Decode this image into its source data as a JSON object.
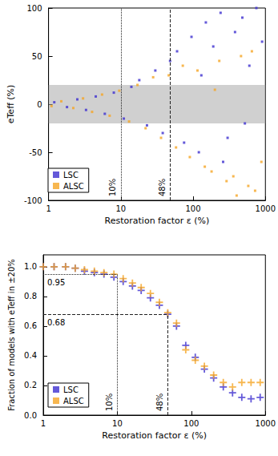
{
  "chart_data": [
    {
      "type": "scatter",
      "x_label": "Restoration factor ε (%)",
      "y_label": "eTeff (%)",
      "log": "x",
      "xlim": [
        1,
        1000
      ],
      "xticks": [
        1,
        10,
        100,
        1000
      ],
      "ylim": [
        -100,
        100
      ],
      "yticks": [
        -100,
        -50,
        0,
        50,
        100
      ],
      "grid": false,
      "legend": "lower left",
      "marker": "square",
      "band": [
        -20,
        20
      ],
      "vlines": [
        {
          "x": 10,
          "label": "10%",
          "line_style": "dotted"
        },
        {
          "x": 48,
          "label": "48%",
          "line_style": "dashed"
        }
      ],
      "series": [
        {
          "name": "LSC",
          "color": "#3d2fd0",
          "x": [
            1.2,
            1.8,
            2.5,
            3.3,
            4.5,
            6,
            8,
            11,
            14,
            18,
            23,
            30,
            38,
            48,
            60,
            75,
            95,
            120,
            150,
            190,
            240,
            300,
            380,
            480,
            600,
            750,
            900,
            130,
            260,
            520
          ],
          "values": [
            2,
            -3,
            5,
            -6,
            8,
            -10,
            12,
            -15,
            18,
            25,
            -22,
            35,
            -30,
            45,
            55,
            -40,
            70,
            -50,
            85,
            60,
            95,
            -35,
            75,
            90,
            40,
            100,
            65,
            30,
            -60,
            -20
          ]
        },
        {
          "name": "ALSC",
          "color": "#f5a524",
          "x": [
            1.1,
            1.5,
            2.2,
            3,
            4,
            5.5,
            7,
            9.5,
            13,
            17,
            22,
            28,
            36,
            46,
            58,
            72,
            90,
            115,
            145,
            180,
            230,
            290,
            360,
            460,
            580,
            720,
            880,
            200,
            400,
            650
          ],
          "values": [
            -2,
            3,
            -4,
            6,
            -8,
            10,
            -12,
            14,
            -18,
            20,
            -25,
            28,
            -35,
            30,
            -45,
            40,
            -55,
            35,
            -65,
            -70,
            45,
            -80,
            -75,
            50,
            -85,
            -90,
            -60,
            15,
            -95,
            55
          ]
        }
      ]
    },
    {
      "type": "scatter",
      "x_label": "Restoration factor ε (%)",
      "y_label": "Fraction of models with eTeff in ±20%",
      "log": "x",
      "xlim": [
        1,
        1000
      ],
      "xticks": [
        1,
        10,
        100,
        1000
      ],
      "ylim": [
        0,
        1.08
      ],
      "yticks": [
        {
          "value": 0,
          "label": "0.0"
        },
        0.2,
        0.4,
        0.6,
        0.8,
        {
          "value": 1,
          "label": "1.0"
        }
      ],
      "grid": false,
      "legend": "lower left",
      "marker": "plus",
      "hlines": [
        {
          "y": 0.95,
          "x_end": 10,
          "label": "0.95",
          "line_style": "dotted",
          "vlabel": "10%"
        },
        {
          "y": 0.68,
          "x_end": 48,
          "label": "0.68",
          "line_style": "dashed",
          "vlabel": "48%"
        }
      ],
      "series": [
        {
          "name": "LSC",
          "color": "#3d2fd0",
          "x": [
            1,
            1.4,
            2,
            2.7,
            3.6,
            4.9,
            6.6,
            9,
            12,
            16,
            21,
            28,
            37,
            48,
            63,
            84,
            113,
            150,
            200,
            270,
            360,
            480,
            640,
            850
          ],
          "values": [
            1.0,
            1.0,
            1.0,
            0.99,
            0.97,
            0.96,
            0.95,
            0.93,
            0.9,
            0.87,
            0.84,
            0.79,
            0.74,
            0.68,
            0.6,
            0.47,
            0.39,
            0.31,
            0.25,
            0.19,
            0.15,
            0.12,
            0.11,
            0.12
          ]
        },
        {
          "name": "ALSC",
          "color": "#f5a524",
          "x": [
            1,
            1.4,
            2,
            2.7,
            3.6,
            4.9,
            6.6,
            9,
            12,
            16,
            21,
            28,
            37,
            48,
            63,
            84,
            113,
            150,
            200,
            270,
            360,
            480,
            640,
            850
          ],
          "values": [
            1.0,
            1.0,
            1.0,
            0.99,
            0.98,
            0.97,
            0.96,
            0.95,
            0.92,
            0.89,
            0.86,
            0.82,
            0.76,
            0.69,
            0.62,
            0.44,
            0.37,
            0.33,
            0.27,
            0.22,
            0.19,
            0.22,
            0.22,
            0.22
          ]
        }
      ]
    }
  ]
}
